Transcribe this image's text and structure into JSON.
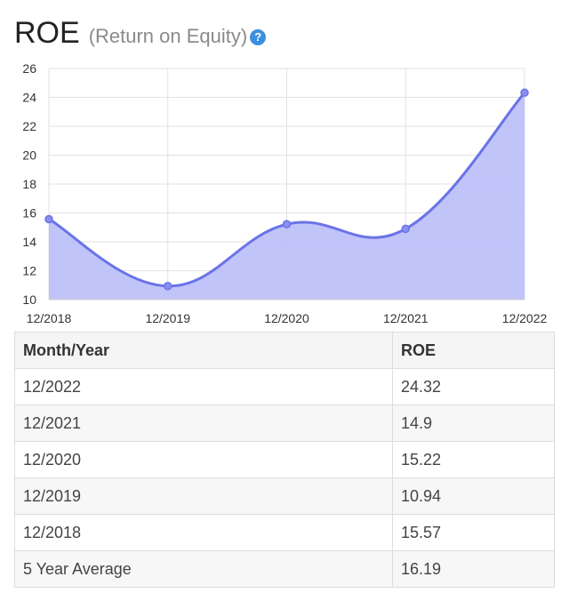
{
  "header": {
    "title": "ROE",
    "subtitle": "(Return on Equity)",
    "help_icon": "question-circle-icon"
  },
  "chart_data": {
    "type": "area",
    "categories": [
      "12/2018",
      "12/2019",
      "12/2020",
      "12/2021",
      "12/2022"
    ],
    "series": [
      {
        "values": [
          15.57,
          10.94,
          15.22,
          14.9,
          24.32
        ]
      }
    ],
    "y_ticks": [
      "10",
      "12",
      "14",
      "16",
      "18",
      "20",
      "22",
      "24",
      "26"
    ],
    "ylim": [
      10,
      26
    ],
    "grid": true,
    "colors": {
      "line": "#6a73e8",
      "fill": "#b9bef8",
      "grid": "#e2e2e2"
    }
  },
  "table": {
    "headers": [
      "Month/Year",
      "ROE"
    ],
    "rows": [
      [
        "12/2022",
        "24.32"
      ],
      [
        "12/2021",
        "14.9"
      ],
      [
        "12/2020",
        "15.22"
      ],
      [
        "12/2019",
        "10.94"
      ],
      [
        "12/2018",
        "15.57"
      ],
      [
        "5 Year Average",
        "16.19"
      ]
    ]
  }
}
